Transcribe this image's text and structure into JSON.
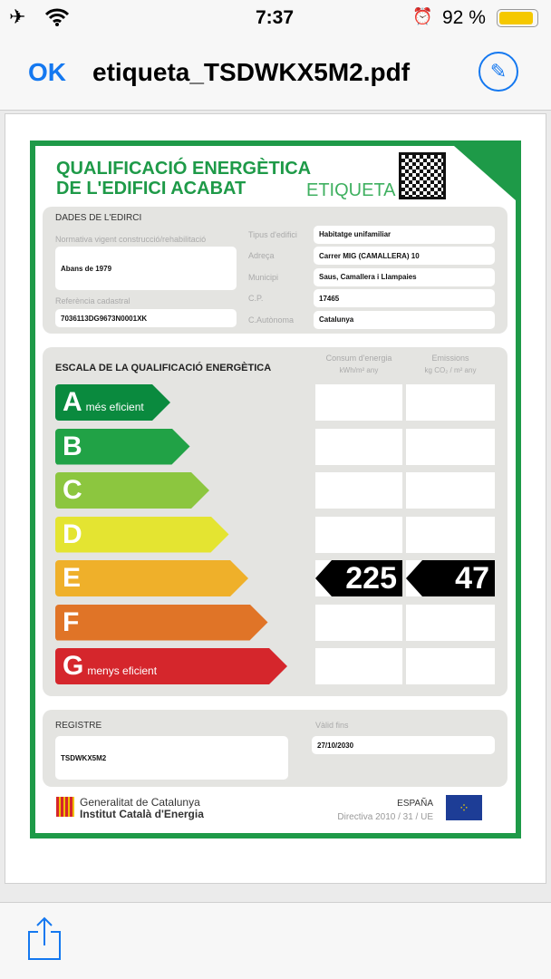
{
  "status_bar": {
    "time": "7:37",
    "battery": "92 %"
  },
  "nav": {
    "ok_label": "OK",
    "title": "etiqueta_TSDWKX5M2.pdf"
  },
  "label": {
    "title_line1": "QUALIFICACIÓ ENERGÈTICA",
    "title_line2": "DE L'EDIFICI ACABAT",
    "tag": "ETIQUETA",
    "building": {
      "section": "DADES DE L'EDIRCI",
      "normativa_label": "Normativa vigent construcció/rehabilitació",
      "normativa_value": "Abans de 1979",
      "ref_label": "Referència cadastral",
      "ref_value": "7036113DG9673N0001XK",
      "fields": [
        {
          "label": "Tipus d'edifici",
          "value": "Habitatge unifamiliar"
        },
        {
          "label": "Adreça",
          "value": "Carrer MIG (CAMALLERA) 10"
        },
        {
          "label": "Municipi",
          "value": "Saus, Camallera i Llampaies"
        },
        {
          "label": "C.P.",
          "value": "17465"
        },
        {
          "label": "C.Autònoma",
          "value": "Catalunya"
        }
      ]
    },
    "scale": {
      "section": "ESCALA DE LA QUALIFICACIÓ ENERGÈTICA",
      "consum_header": "Consum d'energia",
      "consum_unit": "kWh/m² any",
      "emis_header": "Emissions",
      "emis_unit": "kg CO₂ / m² any",
      "classes": [
        {
          "letter": "A",
          "note": "més eficient",
          "color": "#0a8a3e"
        },
        {
          "letter": "B",
          "note": "",
          "color": "#21a246"
        },
        {
          "letter": "C",
          "note": "",
          "color": "#8cc63f"
        },
        {
          "letter": "D",
          "note": "",
          "color": "#e4e431"
        },
        {
          "letter": "E",
          "note": "",
          "color": "#efb02a"
        },
        {
          "letter": "F",
          "note": "",
          "color": "#e07427"
        },
        {
          "letter": "G",
          "note": "menys eficient",
          "color": "#d5262c"
        }
      ],
      "rating": "E",
      "consum_value": "225",
      "emis_value": "47"
    },
    "registre": {
      "label": "REGISTRE",
      "value": "TSDWKX5M2",
      "valid_label": "Vàlid fins",
      "valid_value": "27/10/2030"
    },
    "footer": {
      "org1": "Generalitat de Catalunya",
      "org2": "Institut Català d'Energia",
      "country": "ESPAÑA",
      "directive": "Directiva 2010 / 31 / UE"
    }
  }
}
